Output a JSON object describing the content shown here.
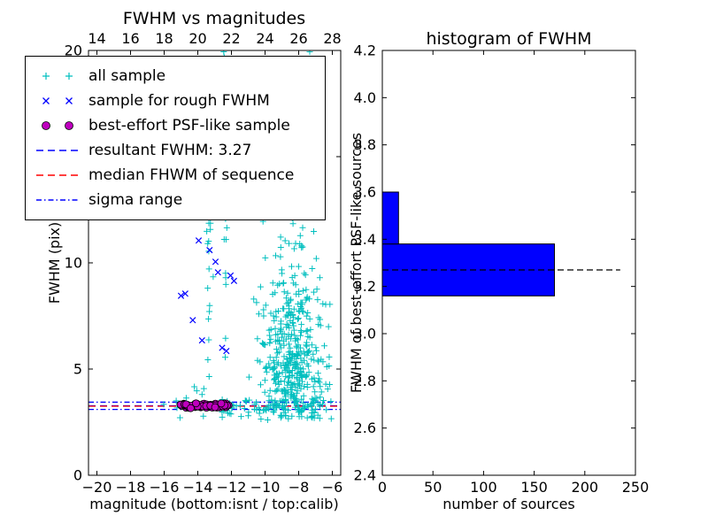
{
  "figure": {
    "background": "#ffffff"
  },
  "chart_data": [
    {
      "type": "scatter",
      "title": "FWHM vs magnitudes",
      "xlabel": "magnitude (bottom:isnt / top:calib)",
      "ylabel": "FWHM (pix)",
      "xlim": [
        -20.5,
        -5.5
      ],
      "ylim": [
        0,
        20
      ],
      "x_ticks_bottom": [
        -20,
        -18,
        -16,
        -14,
        -12,
        -10,
        -8,
        -6
      ],
      "x_ticks_top": [
        14,
        16,
        18,
        20,
        22,
        24,
        26,
        28
      ],
      "top_axis_offset": 34,
      "y_ticks": [
        0,
        5,
        10,
        15,
        20
      ],
      "grid": false,
      "legend_position": "upper-left-outside",
      "series": [
        {
          "name": "all sample",
          "marker": "plus",
          "color": "#00bfbf",
          "clusters": [
            {
              "n": 430,
              "x": {
                "dist": "gauss",
                "mean": -8.3,
                "sd": 1.05,
                "min": -11.0,
                "max": -6.1
              },
              "y": {
                "dist": "gauss",
                "mean": 5.3,
                "sd": 2.4,
                "min": 2.65,
                "max": 14
              }
            },
            {
              "n": 45,
              "x": {
                "dist": "gauss",
                "mean": -8.6,
                "sd": 1.2,
                "min": -11.5,
                "max": -6.2
              },
              "y": {
                "dist": "uniform",
                "min": 9,
                "max": 20
              }
            },
            {
              "n": 28,
              "x": {
                "dist": "gauss",
                "mean": -13.32,
                "sd": 0.1,
                "min": -13.7,
                "max": -13.0
              },
              "y": {
                "dist": "uniform",
                "min": 4.6,
                "max": 20
              }
            },
            {
              "n": 22,
              "x": {
                "dist": "gauss",
                "mean": -12.42,
                "sd": 0.12,
                "min": -12.8,
                "max": -12.1
              },
              "y": {
                "dist": "uniform",
                "min": 5.2,
                "max": 20
              }
            },
            {
              "n": 50,
              "x": {
                "dist": "uniform",
                "min": -12.6,
                "max": -8.6
              },
              "y": {
                "dist": "gauss",
                "mean": 3.15,
                "sd": 0.22,
                "min": 2.6,
                "max": 3.8
              }
            },
            {
              "n": 26,
              "x": {
                "dist": "uniform",
                "min": -8.3,
                "max": -6.0
              },
              "y": {
                "dist": "gauss",
                "mean": 3.05,
                "sd": 0.3,
                "min": 2.4,
                "max": 3.9
              }
            },
            {
              "n": 12,
              "x": {
                "dist": "uniform",
                "min": -16.2,
                "max": -13.2
              },
              "y": {
                "dist": "gauss",
                "mean": 3.5,
                "sd": 0.6,
                "min": 2.7,
                "max": 5.5
              }
            },
            {
              "n": 8,
              "x": {
                "dist": "uniform",
                "min": -15.5,
                "max": -11.8
              },
              "y": {
                "dist": "uniform",
                "min": 13,
                "max": 20
              }
            }
          ]
        },
        {
          "name": "sample for rough FWHM",
          "marker": "x",
          "color": "#0000ff",
          "points": [
            [
              -15.0,
              8.45
            ],
            [
              -14.75,
              8.55
            ],
            [
              -14.3,
              7.3
            ],
            [
              -13.95,
              11.05
            ],
            [
              -13.75,
              6.35
            ],
            [
              -13.3,
              10.6
            ],
            [
              -12.95,
              10.05
            ],
            [
              -12.8,
              9.55
            ],
            [
              -12.55,
              6.0
            ],
            [
              -12.3,
              5.85
            ],
            [
              -12.05,
              9.4
            ],
            [
              -11.85,
              9.15
            ]
          ]
        },
        {
          "name": "best-effort PSF-like sample",
          "marker": "circle",
          "color": "#bf00bf",
          "edge_color": "#000000",
          "clusters": [
            {
              "n": 75,
              "x": {
                "dist": "uniform",
                "min": -15.05,
                "max": -12.0
              },
              "y": {
                "dist": "gauss",
                "mean": 3.28,
                "sd": 0.055,
                "min": 3.12,
                "max": 3.45
              }
            }
          ]
        }
      ],
      "lines": [
        {
          "name": "resultant-fwhm-line",
          "value": 3.27,
          "style": "dashed",
          "color": "#0000ff"
        },
        {
          "name": "median-fwhm-line",
          "value": 3.25,
          "style": "dashed",
          "color": "#ff0000"
        },
        {
          "name": "sigma-range-lower-line",
          "value": 3.1,
          "style": "dashdot",
          "color": "#0000ff"
        },
        {
          "name": "sigma-range-upper-line",
          "value": 3.44,
          "style": "dashdot",
          "color": "#0000ff"
        }
      ],
      "legend": {
        "entries": [
          {
            "label": "all sample",
            "type": "marker",
            "marker": "plus",
            "color": "#00bfbf"
          },
          {
            "label": "sample for rough FWHM",
            "type": "marker",
            "marker": "x",
            "color": "#0000ff"
          },
          {
            "label": "best-effort PSF-like sample",
            "type": "marker",
            "marker": "circle",
            "color": "#bf00bf"
          },
          {
            "label": "resultant FWHM: 3.27",
            "type": "line",
            "style": "dashed",
            "color": "#0000ff"
          },
          {
            "label": "median FHWM of sequence",
            "type": "line",
            "style": "dashed",
            "color": "#ff0000"
          },
          {
            "label": "sigma range",
            "type": "line",
            "style": "dashdot",
            "color": "#0000ff"
          }
        ]
      }
    },
    {
      "type": "bar",
      "orientation": "horizontal",
      "title": "histogram of FWHM",
      "xlabel": "number of sources",
      "ylabel": "FWHM of best-effort PSF-like sources",
      "xlim": [
        0,
        250
      ],
      "ylim": [
        2.4,
        4.2
      ],
      "x_ticks": [
        0,
        50,
        100,
        150,
        200,
        250
      ],
      "y_ticks": [
        2.4,
        2.6,
        2.8,
        3.0,
        3.2,
        3.4,
        3.6,
        3.8,
        4.0,
        4.2
      ],
      "grid": false,
      "bar_color": "#0000ff",
      "bar_edge_color": "#000000",
      "bars": [
        {
          "y_from": 3.16,
          "y_to": 3.38,
          "count": 170
        },
        {
          "y_from": 3.38,
          "y_to": 3.6,
          "count": 16
        }
      ],
      "median_line": {
        "y": 3.27,
        "x_from": 0,
        "x_to": 235,
        "style": "dashed",
        "color": "#000000"
      }
    }
  ]
}
